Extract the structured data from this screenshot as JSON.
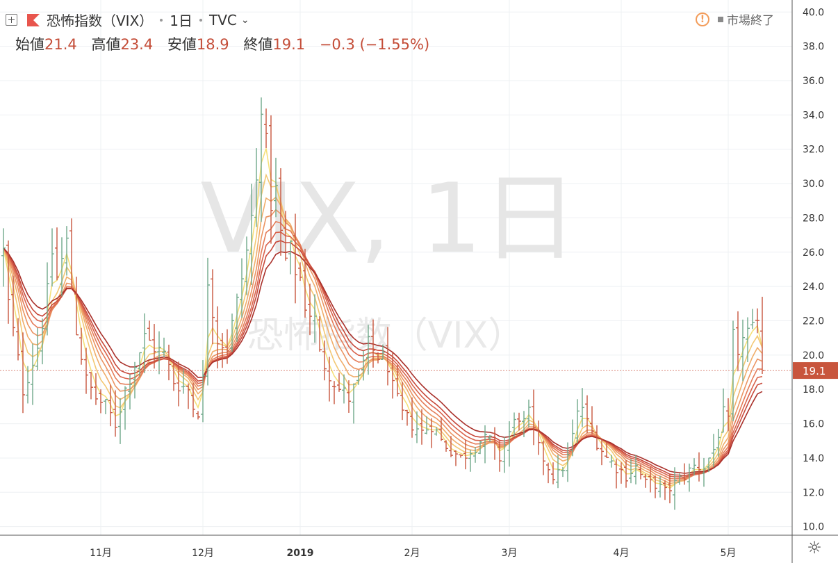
{
  "header": {
    "symbol": "恐怖指数（VIX）",
    "interval": "1日",
    "exchange": "TVC",
    "ohlc": [
      {
        "label": "始値",
        "value": "21.4"
      },
      {
        "label": "高値",
        "value": "23.4"
      },
      {
        "label": "安値",
        "value": "18.9"
      },
      {
        "label": "終値",
        "value": "19.1"
      }
    ],
    "change": "−0.3 (−1.55%)",
    "market_status": "市場終了",
    "warning_icon": "exclamation-circle-icon"
  },
  "watermark": {
    "line1": "VIX, 1日",
    "line2": "恐怖指数（VIX）"
  },
  "price_tag": "19.1",
  "colors": {
    "up": "#6fa88a",
    "down": "#c8553d",
    "last_line": "#d9867a",
    "ribbon": [
      "#f5e07a",
      "#f3c874",
      "#f0ad6a",
      "#eb9462",
      "#e47c58",
      "#d9634c",
      "#c84a3c",
      "#a9302a"
    ]
  },
  "chart_data": {
    "type": "ohlc_bars_with_ma_ribbon",
    "ylim": [
      9.5,
      40.7
    ],
    "y_ticks": [
      "10.0",
      "12.0",
      "14.0",
      "16.0",
      "18.0",
      "20.0",
      "22.0",
      "24.0",
      "26.0",
      "28.0",
      "30.0",
      "32.0",
      "34.0",
      "36.0",
      "38.0",
      "40.0"
    ],
    "x_ticks": [
      {
        "label": "11月",
        "day": 20
      },
      {
        "label": "12月",
        "day": 41
      },
      {
        "label": "2019",
        "day": 61
      },
      {
        "label": "2月",
        "day": 84
      },
      {
        "label": "3月",
        "day": 104
      },
      {
        "label": "4月",
        "day": 127
      },
      {
        "label": "5月",
        "day": 149
      }
    ],
    "total_days": 156,
    "last_close": 19.1,
    "anchors": [
      [
        0,
        26.0
      ],
      [
        1,
        23.0
      ],
      [
        4,
        18.0
      ],
      [
        7,
        20.5
      ],
      [
        9,
        23.5
      ],
      [
        10,
        26.0
      ],
      [
        11,
        24.5
      ],
      [
        13,
        26.5
      ],
      [
        15,
        21.5
      ],
      [
        17,
        18.5
      ],
      [
        19,
        17.5
      ],
      [
        21,
        17.0
      ],
      [
        23,
        16.0
      ],
      [
        25,
        18.0
      ],
      [
        27,
        19.5
      ],
      [
        29,
        21.0
      ],
      [
        31,
        20.5
      ],
      [
        33,
        20.0
      ],
      [
        35,
        18.5
      ],
      [
        38,
        18.0
      ],
      [
        39,
        17.0
      ],
      [
        40,
        16.8
      ],
      [
        41,
        18.5
      ],
      [
        42,
        24.5
      ],
      [
        44,
        21.0
      ],
      [
        46,
        20.5
      ],
      [
        48,
        23.0
      ],
      [
        50,
        26.0
      ],
      [
        52,
        30.0
      ],
      [
        53,
        35.0
      ],
      [
        54,
        32.0
      ],
      [
        55,
        29.0
      ],
      [
        56,
        29.5
      ],
      [
        57,
        27.0
      ],
      [
        58,
        25.5
      ],
      [
        59,
        26.0
      ],
      [
        60,
        25.0
      ],
      [
        61,
        24.5
      ],
      [
        62,
        23.0
      ],
      [
        64,
        22.0
      ],
      [
        65,
        20.0
      ],
      [
        67,
        19.0
      ],
      [
        69,
        18.0
      ],
      [
        71,
        17.5
      ],
      [
        73,
        18.5
      ],
      [
        75,
        20.5
      ],
      [
        77,
        20.0
      ],
      [
        79,
        19.5
      ],
      [
        80,
        18.0
      ],
      [
        82,
        16.5
      ],
      [
        84,
        16.0
      ],
      [
        86,
        15.5
      ],
      [
        88,
        16.0
      ],
      [
        90,
        15.0
      ],
      [
        92,
        14.5
      ],
      [
        94,
        14.0
      ],
      [
        96,
        14.5
      ],
      [
        98,
        15.0
      ],
      [
        100,
        15.0
      ],
      [
        102,
        14.0
      ],
      [
        104,
        15.5
      ],
      [
        106,
        16.5
      ],
      [
        107,
        16.0
      ],
      [
        108,
        16.5
      ],
      [
        110,
        14.5
      ],
      [
        112,
        13.5
      ],
      [
        113,
        13.0
      ],
      [
        114,
        13.0
      ],
      [
        116,
        14.0
      ],
      [
        118,
        16.5
      ],
      [
        119,
        17.0
      ],
      [
        120,
        16.0
      ],
      [
        121,
        15.5
      ],
      [
        122,
        15.0
      ],
      [
        124,
        14.0
      ],
      [
        126,
        13.5
      ],
      [
        128,
        13.0
      ],
      [
        130,
        13.5
      ],
      [
        132,
        12.5
      ],
      [
        134,
        12.5
      ],
      [
        136,
        12.0
      ],
      [
        138,
        12.5
      ],
      [
        140,
        13.0
      ],
      [
        142,
        13.5
      ],
      [
        144,
        13.5
      ],
      [
        146,
        14.5
      ],
      [
        148,
        16.5
      ],
      [
        149,
        16.0
      ],
      [
        150,
        21.0
      ],
      [
        151,
        19.5
      ],
      [
        152,
        21.4
      ]
    ],
    "ribbon_periods": [
      3,
      5,
      7,
      9,
      11,
      13,
      15,
      18
    ]
  }
}
